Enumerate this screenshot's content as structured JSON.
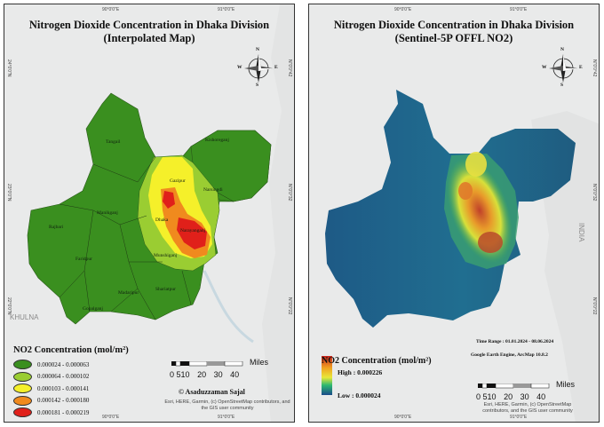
{
  "left_panel": {
    "title_line1": "Nitrogen Dioxide Concentration in Dhaka Division",
    "title_line2": "(Interpolated Map)",
    "legend_title": "NO2 Concentration (mol/m²)",
    "legend_items": [
      {
        "label": "0.000024 - 0.000063",
        "color": "#3a8f1f"
      },
      {
        "label": "0.000064 - 0.000102",
        "color": "#9acd32"
      },
      {
        "label": "0.000103 - 0.000141",
        "color": "#f5f02a"
      },
      {
        "label": "0.000142 - 0.000180",
        "color": "#f08a1e"
      },
      {
        "label": "0.000181 - 0.000219",
        "color": "#e0201a"
      }
    ],
    "districts": [
      "Tangail",
      "Kishoreganj",
      "Gazipur",
      "Narsingdi",
      "Dhaka",
      "Narayanganj",
      "Manikganj",
      "Munshiganj",
      "Rajbari",
      "Faridpur",
      "Shariatpur",
      "Madaripur",
      "Gopalganj"
    ],
    "credit": "© Asaduzzaman Sajal",
    "attribution_line1": "Esri, HERE, Garmin, (c) OpenStreetMap contributors, and",
    "attribution_line2": "the GIS user community",
    "scale_labels": [
      "0",
      "5",
      "10",
      "20",
      "30",
      "40"
    ],
    "scale_unit": "Miles",
    "graticule_top": [
      "90°0'0\"E",
      "91°0'0\"E"
    ],
    "graticule_bottom": [
      "90°0'0\"E",
      "91°0'0\"E"
    ],
    "graticule_left": [
      "24°0'0\"N",
      "23°0'0\"N",
      "22°0'0\"N"
    ],
    "graticule_right": [
      "N\"0'0°42",
      "N\"0'0°32",
      "N\"0'0°22"
    ],
    "basemap_labels": [
      "KHULNA"
    ],
    "compass": {
      "n": "N",
      "s": "S",
      "e": "E",
      "w": "W"
    }
  },
  "right_panel": {
    "title_line1": "Nitrogen Dioxide Concentration in Dhaka Division",
    "title_line2": "(Sentinel-5P OFFL NO2)",
    "legend_title": "NO2 Concentration (mol/m²)",
    "legend_high": "High : 0.000226",
    "legend_low": "Low : 0.000024",
    "time_range": "Time Range : 01.01.2024 - 08.06.2024",
    "software": "Google Earth Engine, ArcMap 10.8.2",
    "attribution_line1": "Esri, HERE, Garmin, (c) OpenStreetMap",
    "attribution_line2": "contributors, and the GIS user community",
    "scale_labels": [
      "0",
      "5",
      "10",
      "20",
      "30",
      "40"
    ],
    "scale_unit": "Miles",
    "graticule_top": [
      "90°0'0\"E",
      "91°0'0\"E"
    ],
    "graticule_bottom": [
      "90°0'0\"E",
      "91°0'0\"E"
    ],
    "graticule_right": [
      "N\"0'0°42",
      "N\"0'0°32",
      "N\"0'0°22"
    ],
    "basemap_labels": [
      "INDIA"
    ],
    "compass": {
      "n": "N",
      "s": "S",
      "e": "E",
      "w": "W"
    }
  }
}
